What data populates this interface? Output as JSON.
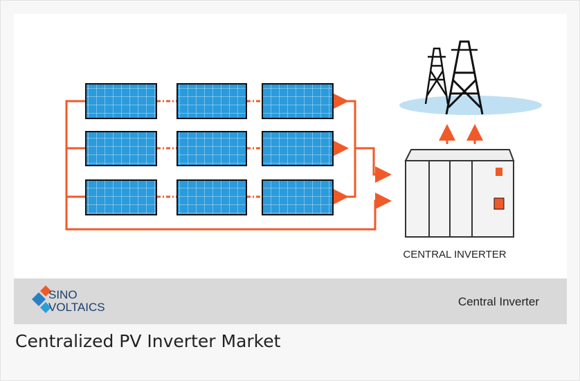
{
  "image": {
    "diagram_label": "CENTRAL INVERTER",
    "logo_line1": "SINO",
    "logo_line2": "VOLTAICS",
    "band_label": "Central Inverter"
  },
  "caption": "Centralized PV Inverter Market"
}
